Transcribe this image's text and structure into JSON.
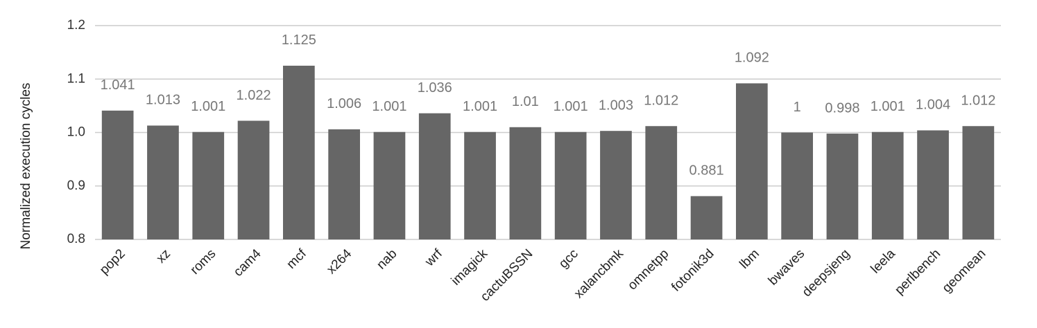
{
  "chart_data": {
    "type": "bar",
    "y_label": "Normalized execution cycles",
    "categories": [
      "pop2",
      "xz",
      "roms",
      "cam4",
      "mcf",
      "x264",
      "nab",
      "wrf",
      "imagick",
      "cactuBSSN",
      "gcc",
      "xalancbmk",
      "omnetpp",
      "fotonik3d",
      "lbm",
      "bwaves",
      "deepsjeng",
      "leela",
      "perlbench",
      "geomean"
    ],
    "values": [
      1.041,
      1.013,
      1.001,
      1.022,
      1.125,
      1.006,
      1.001,
      1.036,
      1.001,
      1.01,
      1.001,
      1.003,
      1.012,
      0.881,
      1.092,
      1,
      0.998,
      1.001,
      1.004,
      1.012
    ],
    "color": "#666666",
    "ylim": [
      0.8,
      1.2
    ],
    "yticks": [
      0.8,
      0.9,
      {
        "value": 1,
        "label": "1.0"
      },
      1.1,
      1.2
    ],
    "grid": true
  }
}
